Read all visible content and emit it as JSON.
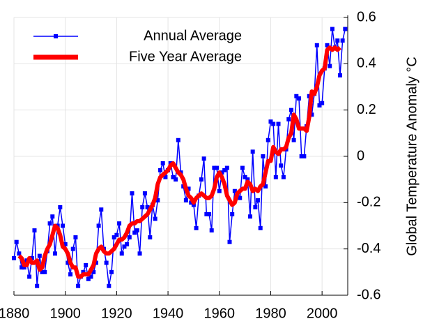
{
  "chart_data": {
    "type": "line",
    "y_label": "Global Temperature Anomaly °C",
    "xlim": [
      1880,
      2010
    ],
    "xticks": [
      1880,
      1900,
      1920,
      1940,
      1960,
      1980,
      2000
    ],
    "ylim": [
      -0.6,
      0.6
    ],
    "yticks": [
      -0.6,
      -0.4,
      -0.2,
      0,
      0.2,
      0.4,
      0.6
    ],
    "grid": true,
    "legend": "upper left",
    "series": [
      {
        "name": "Annual Average",
        "color": "#0000ff",
        "marker": "square",
        "x": [
          1880,
          1881,
          1882,
          1883,
          1884,
          1885,
          1886,
          1887,
          1888,
          1889,
          1890,
          1891,
          1892,
          1893,
          1894,
          1895,
          1896,
          1897,
          1898,
          1899,
          1900,
          1901,
          1902,
          1903,
          1904,
          1905,
          1906,
          1907,
          1908,
          1909,
          1910,
          1911,
          1912,
          1913,
          1914,
          1915,
          1916,
          1917,
          1918,
          1919,
          1920,
          1921,
          1922,
          1923,
          1924,
          1925,
          1926,
          1927,
          1928,
          1929,
          1930,
          1931,
          1932,
          1933,
          1934,
          1935,
          1936,
          1937,
          1938,
          1939,
          1940,
          1941,
          1942,
          1943,
          1944,
          1945,
          1946,
          1947,
          1948,
          1949,
          1950,
          1951,
          1952,
          1953,
          1954,
          1955,
          1956,
          1957,
          1958,
          1959,
          1960,
          1961,
          1962,
          1963,
          1964,
          1965,
          1966,
          1967,
          1968,
          1969,
          1970,
          1971,
          1972,
          1973,
          1974,
          1975,
          1976,
          1977,
          1978,
          1979,
          1980,
          1981,
          1982,
          1983,
          1984,
          1985,
          1986,
          1987,
          1988,
          1989,
          1990,
          1991,
          1992,
          1993,
          1994,
          1995,
          1996,
          1997,
          1998,
          1999,
          2000,
          2001,
          2002,
          2003,
          2004,
          2005,
          2006,
          2007,
          2008,
          2009
        ],
        "values": [
          -0.44,
          -0.37,
          -0.42,
          -0.48,
          -0.48,
          -0.45,
          -0.52,
          -0.44,
          -0.32,
          -0.56,
          -0.43,
          -0.5,
          -0.5,
          -0.41,
          -0.29,
          -0.26,
          -0.42,
          -0.3,
          -0.22,
          -0.3,
          -0.38,
          -0.46,
          -0.51,
          -0.4,
          -0.35,
          -0.56,
          -0.52,
          -0.5,
          -0.47,
          -0.53,
          -0.52,
          -0.5,
          -0.46,
          -0.3,
          -0.23,
          -0.4,
          -0.46,
          -0.56,
          -0.5,
          -0.35,
          -0.34,
          -0.29,
          -0.42,
          -0.39,
          -0.38,
          -0.35,
          -0.16,
          -0.33,
          -0.32,
          -0.42,
          -0.22,
          -0.16,
          -0.22,
          -0.35,
          -0.21,
          -0.27,
          -0.19,
          -0.06,
          -0.03,
          -0.09,
          -0.06,
          -0.03,
          -0.09,
          -0.1,
          0.07,
          -0.07,
          -0.13,
          -0.19,
          -0.14,
          -0.2,
          -0.21,
          -0.31,
          -0.17,
          -0.1,
          -0.01,
          -0.25,
          -0.25,
          -0.32,
          -0.05,
          -0.05,
          -0.15,
          -0.07,
          -0.06,
          -0.05,
          -0.37,
          -0.25,
          -0.15,
          -0.17,
          -0.18,
          -0.05,
          -0.09,
          -0.1,
          -0.26,
          0.02,
          -0.22,
          -0.19,
          -0.31,
          0.0,
          -0.13,
          0.07,
          0.15,
          0.14,
          -0.09,
          0.14,
          -0.04,
          -0.09,
          0.03,
          0.16,
          0.2,
          0.07,
          0.26,
          0.25,
          0.0,
          0.0,
          0.13,
          0.26,
          0.18,
          0.27,
          0.48,
          0.22,
          0.23,
          0.38,
          0.48,
          0.39,
          0.55,
          0.47,
          0.5,
          0.35,
          0.5,
          0.55
        ]
      },
      {
        "name": "Five Year Average",
        "color": "#ff0000",
        "x": [
          1882,
          1883,
          1884,
          1885,
          1886,
          1887,
          1888,
          1889,
          1890,
          1891,
          1892,
          1893,
          1894,
          1895,
          1896,
          1897,
          1898,
          1899,
          1900,
          1901,
          1902,
          1903,
          1904,
          1905,
          1906,
          1907,
          1908,
          1909,
          1910,
          1911,
          1912,
          1913,
          1914,
          1915,
          1916,
          1917,
          1918,
          1919,
          1920,
          1921,
          1922,
          1923,
          1924,
          1925,
          1926,
          1927,
          1928,
          1929,
          1930,
          1931,
          1932,
          1933,
          1934,
          1935,
          1936,
          1937,
          1938,
          1939,
          1940,
          1941,
          1942,
          1943,
          1944,
          1945,
          1946,
          1947,
          1948,
          1949,
          1950,
          1951,
          1952,
          1953,
          1954,
          1955,
          1956,
          1957,
          1958,
          1959,
          1960,
          1961,
          1962,
          1963,
          1964,
          1965,
          1966,
          1967,
          1968,
          1969,
          1970,
          1971,
          1972,
          1973,
          1974,
          1975,
          1976,
          1977,
          1978,
          1979,
          1980,
          1981,
          1982,
          1983,
          1984,
          1985,
          1986,
          1987,
          1988,
          1989,
          1990,
          1991,
          1992,
          1993,
          1994,
          1995,
          1996,
          1997,
          1998,
          1999,
          2000,
          2001,
          2002,
          2003,
          2004,
          2005,
          2006,
          2007
        ],
        "values": [
          -0.43,
          -0.44,
          -0.47,
          -0.47,
          -0.44,
          -0.46,
          -0.46,
          -0.45,
          -0.49,
          -0.48,
          -0.43,
          -0.4,
          -0.38,
          -0.34,
          -0.3,
          -0.31,
          -0.34,
          -0.39,
          -0.4,
          -0.42,
          -0.46,
          -0.48,
          -0.48,
          -0.52,
          -0.52,
          -0.51,
          -0.51,
          -0.51,
          -0.49,
          -0.47,
          -0.42,
          -0.4,
          -0.39,
          -0.41,
          -0.42,
          -0.42,
          -0.41,
          -0.4,
          -0.38,
          -0.36,
          -0.36,
          -0.35,
          -0.33,
          -0.3,
          -0.29,
          -0.29,
          -0.28,
          -0.28,
          -0.27,
          -0.26,
          -0.25,
          -0.23,
          -0.21,
          -0.18,
          -0.12,
          -0.09,
          -0.08,
          -0.07,
          -0.06,
          -0.04,
          -0.03,
          -0.05,
          -0.07,
          -0.08,
          -0.1,
          -0.14,
          -0.17,
          -0.18,
          -0.2,
          -0.18,
          -0.17,
          -0.16,
          -0.17,
          -0.18,
          -0.18,
          -0.17,
          -0.14,
          -0.09,
          -0.07,
          -0.09,
          -0.12,
          -0.17,
          -0.19,
          -0.21,
          -0.2,
          -0.16,
          -0.15,
          -0.14,
          -0.14,
          -0.11,
          -0.12,
          -0.15,
          -0.14,
          -0.15,
          -0.13,
          -0.12,
          -0.07,
          -0.02,
          -0.02,
          0.04,
          0.02,
          0.01,
          0.03,
          0.03,
          0.04,
          0.08,
          0.1,
          0.18,
          0.16,
          0.12,
          0.12,
          0.12,
          0.11,
          0.17,
          0.28,
          0.27,
          0.3,
          0.35,
          0.37,
          0.38,
          0.46,
          0.47,
          0.46,
          0.47,
          0.46,
          0.47
        ]
      }
    ]
  }
}
